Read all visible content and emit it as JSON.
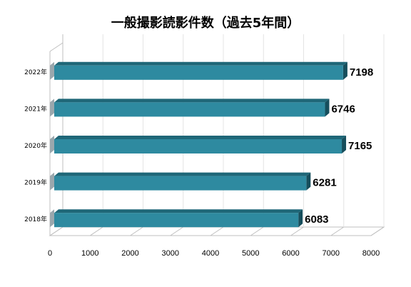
{
  "chart_data": {
    "type": "bar",
    "orientation": "horizontal",
    "style": "3d",
    "title": "一般撮影読影件数（過去5年間）",
    "categories": [
      "2018年",
      "2019年",
      "2020年",
      "2021年",
      "2022年"
    ],
    "values": [
      6083,
      6281,
      7165,
      6746,
      7198
    ],
    "data_labels": [
      "6083",
      "6281",
      "7165",
      "6746",
      "7198"
    ],
    "xlim": [
      0,
      8000
    ],
    "x_ticks": [
      "0",
      "1000",
      "2000",
      "3000",
      "4000",
      "5000",
      "6000",
      "7000",
      "8000"
    ],
    "grid": true,
    "legend": "none",
    "colors": {
      "bar_front": "#2e8aa0",
      "bar_top": "#1f6778",
      "bar_end": "#164e5c"
    }
  }
}
